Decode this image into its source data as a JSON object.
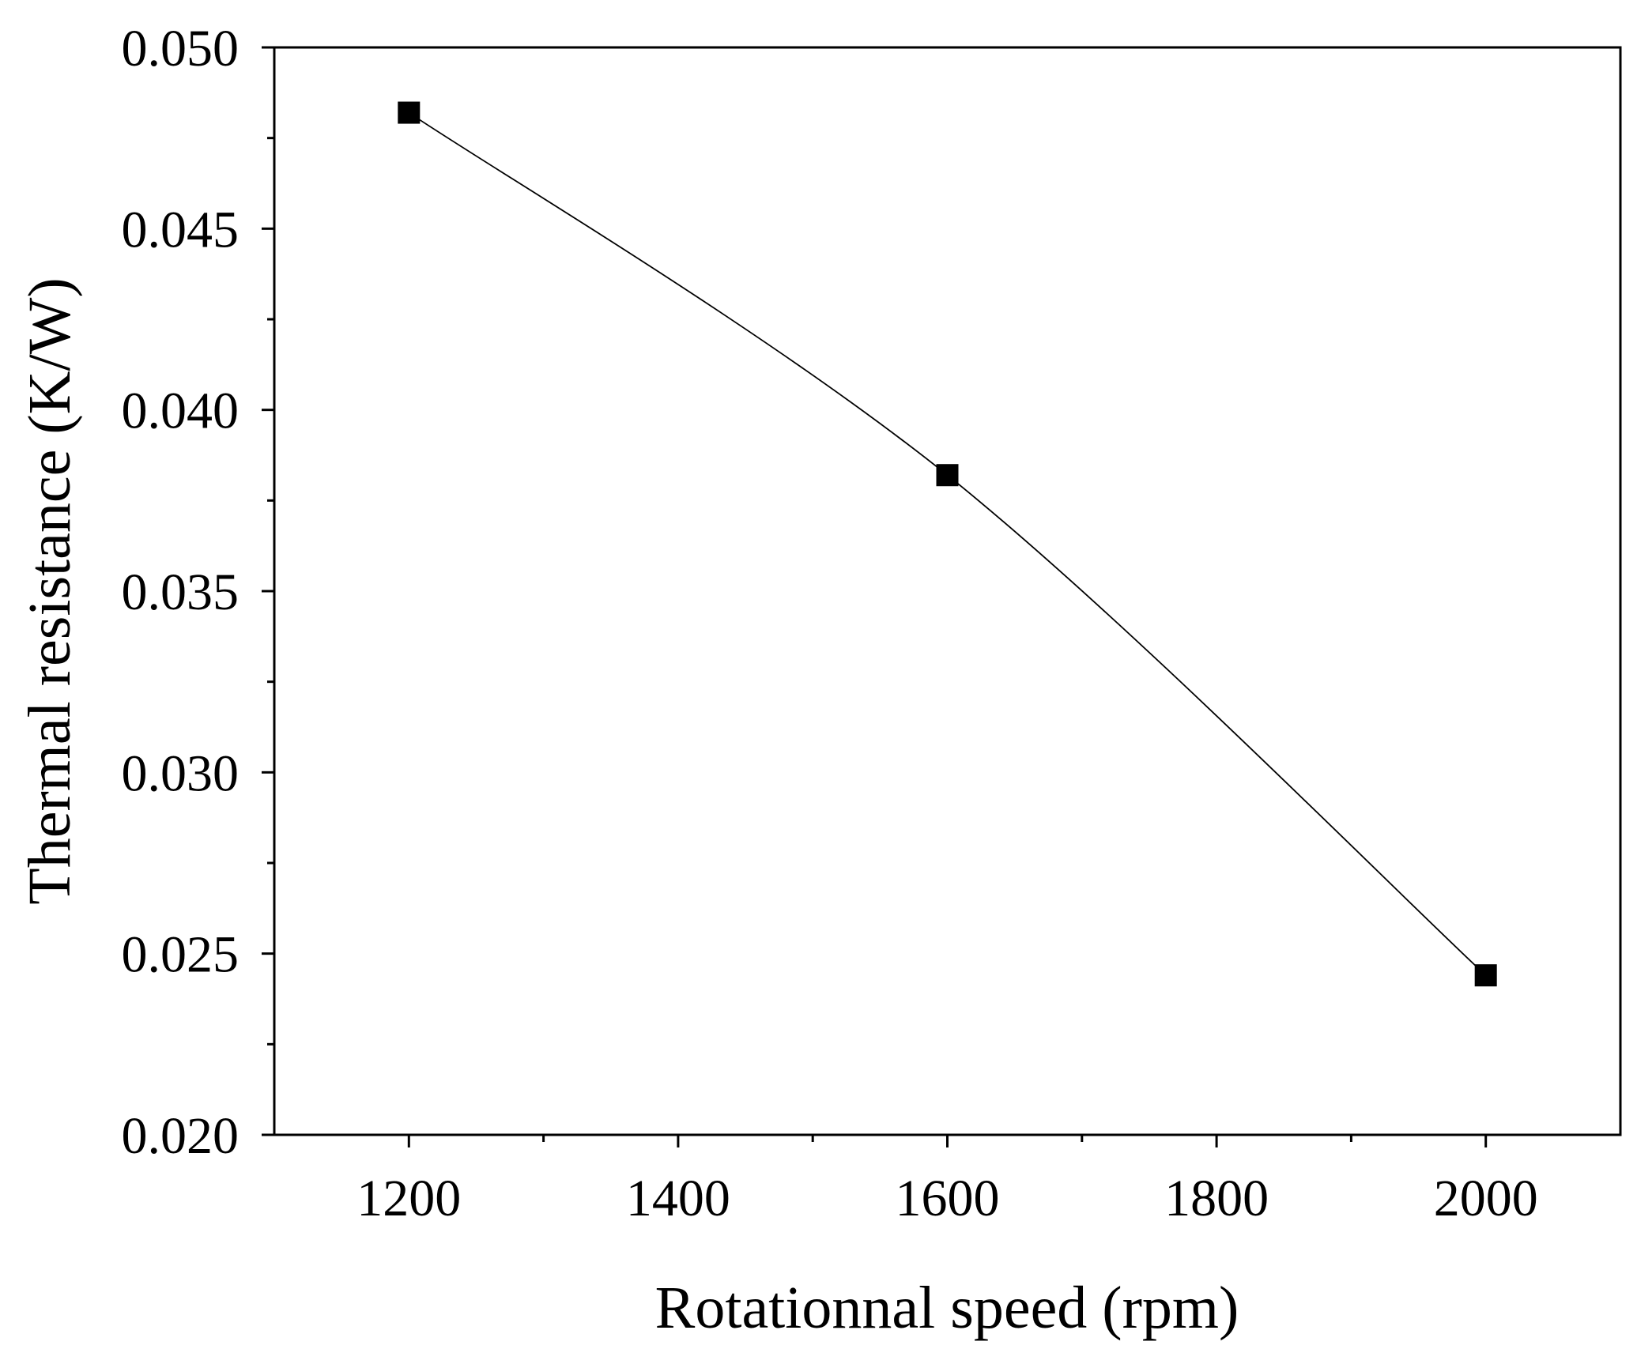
{
  "chart_data": {
    "type": "line",
    "title": "",
    "xlabel": "Rotationnal speed (rpm)",
    "ylabel": "Thermal resistance (K/W)",
    "xlim": [
      1100,
      2100
    ],
    "ylim": [
      0.02,
      0.05
    ],
    "x_ticks": [
      1200,
      1400,
      1600,
      1800,
      2000
    ],
    "x_tick_labels": [
      "1200",
      "1400",
      "1600",
      "1800",
      "2000"
    ],
    "y_ticks": [
      0.02,
      0.025,
      0.03,
      0.035,
      0.04,
      0.045,
      0.05
    ],
    "y_tick_labels": [
      "0.020",
      "0.025",
      "0.030",
      "0.035",
      "0.040",
      "0.045",
      "0.050"
    ],
    "x_minor_ticks": [
      1300,
      1500,
      1700,
      1900
    ],
    "y_minor_ticks": [
      0.0225,
      0.0275,
      0.0325,
      0.0375,
      0.0425,
      0.0475
    ],
    "grid": false,
    "legend": "none",
    "series": [
      {
        "name": "Thermal resistance",
        "x": [
          1200,
          1600,
          2000
        ],
        "y": [
          0.0482,
          0.0382,
          0.0244
        ],
        "marker": "square",
        "line": "smooth",
        "color": "#000000"
      }
    ]
  }
}
